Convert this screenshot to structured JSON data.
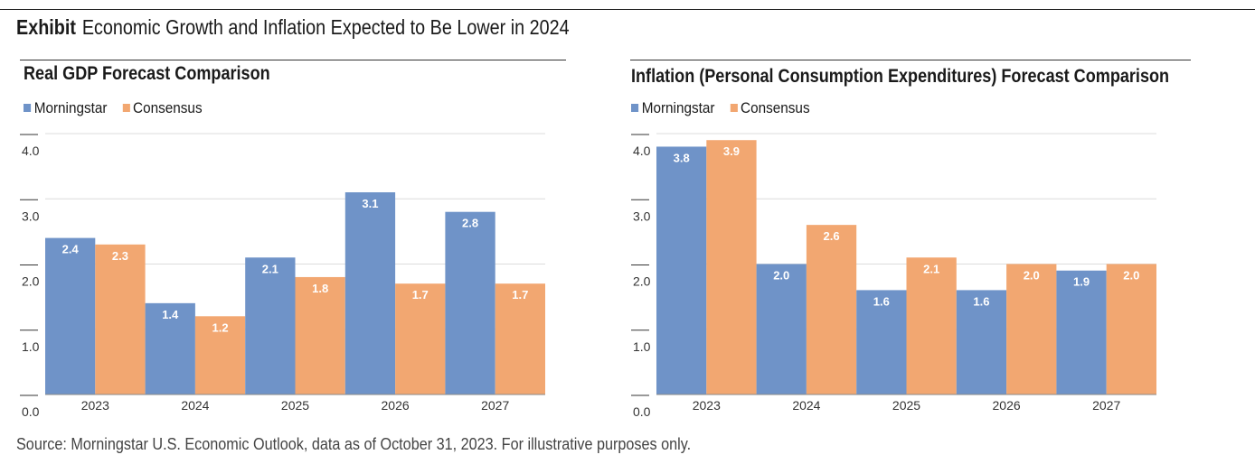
{
  "exhibit": {
    "tag": "Exhibit",
    "title": "Economic Growth and Inflation Expected to Be Lower in 2024"
  },
  "colors": {
    "morningstar": "#6f93c8",
    "consensus": "#f2a771",
    "grid": "#dcdcdc",
    "axis": "#888888"
  },
  "source": "Source: Morningstar U.S. Economic Outlook, data as of October 31, 2023. For illustrative purposes only.",
  "chart_data": [
    {
      "type": "bar",
      "title": "Real GDP Forecast Comparison",
      "categories": [
        "2023",
        "2024",
        "2025",
        "2026",
        "2027"
      ],
      "series": [
        {
          "name": "Morningstar",
          "values": [
            2.4,
            1.4,
            2.1,
            3.1,
            2.8
          ]
        },
        {
          "name": "Consensus",
          "values": [
            2.3,
            1.2,
            1.8,
            1.7,
            1.7
          ]
        }
      ],
      "ylim": [
        0,
        4.0
      ],
      "yticks": [
        "0.0",
        "1.0",
        "2.0",
        "3.0",
        "4.0"
      ],
      "grid": true,
      "legend": "top-left",
      "xlabel": "",
      "ylabel": ""
    },
    {
      "type": "bar",
      "title": "Inflation (Personal Consumption Expenditures) Forecast Comparison",
      "categories": [
        "2023",
        "2024",
        "2025",
        "2026",
        "2027"
      ],
      "series": [
        {
          "name": "Morningstar",
          "values": [
            3.8,
            2.0,
            1.6,
            1.6,
            1.9
          ]
        },
        {
          "name": "Consensus",
          "values": [
            3.9,
            2.6,
            2.1,
            2.0,
            2.0
          ]
        }
      ],
      "ylim": [
        0,
        4.0
      ],
      "yticks": [
        "0.0",
        "1.0",
        "2.0",
        "3.0",
        "4.0"
      ],
      "grid": true,
      "legend": "top-left",
      "xlabel": "",
      "ylabel": ""
    }
  ]
}
